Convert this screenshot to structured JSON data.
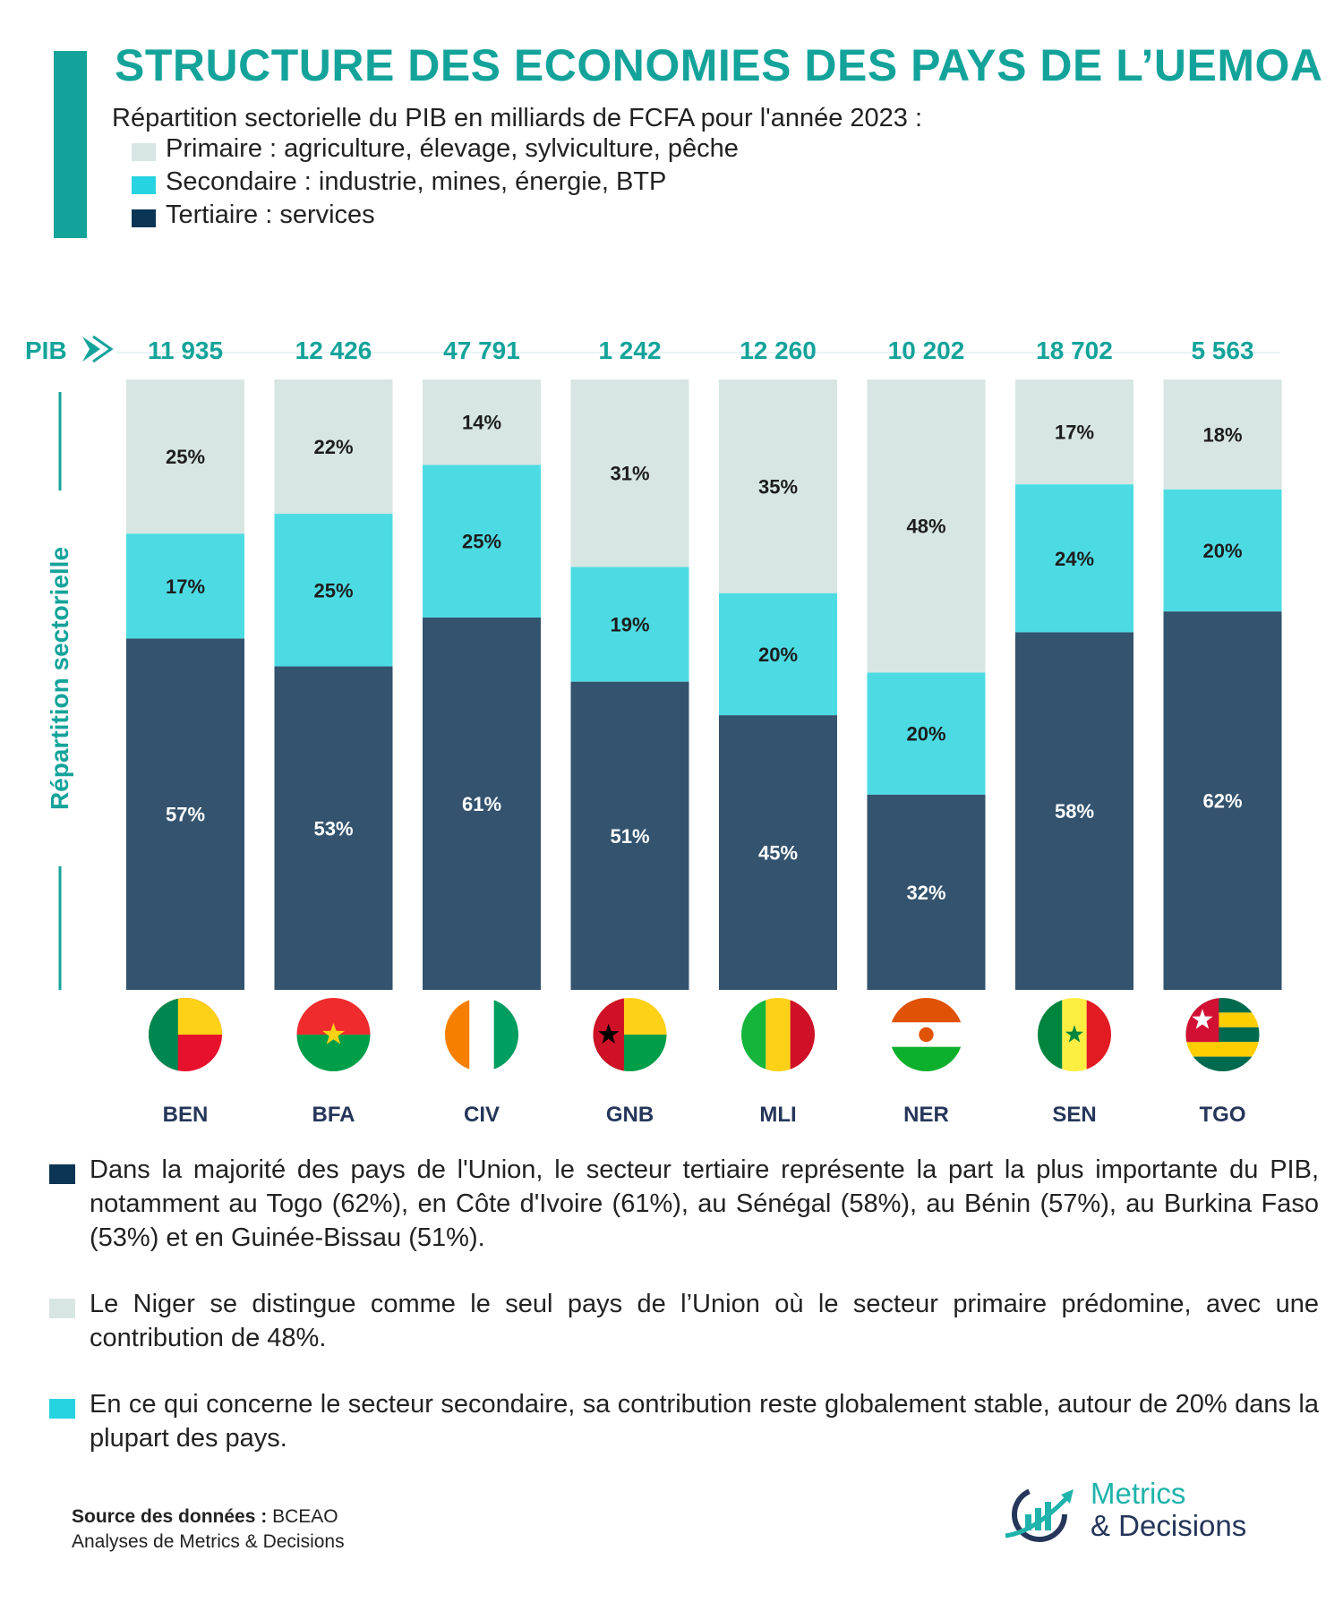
{
  "header": {
    "title": "STRUCTURE DES ECONOMIES DES PAYS DE L’UEMOA",
    "subtitle": "Répartition sectorielle du PIB en milliards de FCFA pour l'année 2023 :"
  },
  "legend": [
    {
      "label": "Primaire : agriculture, élevage, sylviculture, pêche",
      "color": "#d7e6e2"
    },
    {
      "label": "Secondaire : industrie, mines, énergie, BTP",
      "color": "#4ddbe3"
    },
    {
      "label": "Tertiaire : services",
      "color": "#33536e"
    }
  ],
  "colors": {
    "accent": "#14a39a",
    "primaire": "#d7e6e2",
    "secondaire": "#4ddbe3",
    "tertiaire": "#33536e",
    "legend_tertiaire": "#0b3555"
  },
  "chart_data": {
    "type": "bar",
    "stacked": true,
    "ylabel": "Répartition sectorielle",
    "pib_label": "PIB",
    "categories": [
      "BEN",
      "BFA",
      "CIV",
      "GNB",
      "MLI",
      "NER",
      "SEN",
      "TGO"
    ],
    "pib": [
      "11 935",
      "12 426",
      "47 791",
      "1 242",
      "12 260",
      "10 202",
      "18 702",
      "5 563"
    ],
    "series": [
      {
        "name": "Tertiaire",
        "values": [
          57,
          53,
          61,
          51,
          45,
          32,
          58,
          62
        ]
      },
      {
        "name": "Secondaire",
        "values": [
          17,
          25,
          25,
          19,
          20,
          20,
          24,
          20
        ]
      },
      {
        "name": "Primaire",
        "values": [
          25,
          22,
          14,
          31,
          35,
          48,
          17,
          18
        ]
      }
    ],
    "ylim": [
      0,
      100
    ],
    "flags": [
      "benin-flag-icon",
      "burkina-faso-flag-icon",
      "cote-divoire-flag-icon",
      "guinea-bissau-flag-icon",
      "mali-flag-icon",
      "niger-flag-icon",
      "senegal-flag-icon",
      "togo-flag-icon"
    ]
  },
  "notes": [
    {
      "text": "Dans la majorité des pays de l'Union, le secteur tertiaire représente la part la plus importante du PIB, notamment au Togo (62%), en Côte d'Ivoire (61%), au Sénégal (58%), au Bénin (57%), au Burkina Faso (53%) et en Guinée-Bissau (51%).",
      "color": "#0b3555"
    },
    {
      "text": "Le Niger se distingue comme le seul pays de l’Union où le secteur primaire prédomine, avec une contribution de 48%.",
      "color": "#d7e6e2"
    },
    {
      "text": "En ce qui concerne le secteur secondaire, sa contribution reste globalement stable, autour de 20% dans la plupart des pays.",
      "color": "#4ddbe3"
    }
  ],
  "footer": {
    "source_label": "Source des données :",
    "source_value": "BCEAO",
    "analyses": "Analyses de Metrics & Decisions",
    "brand_line1": "Metrics",
    "brand_line2": "& Decisions"
  }
}
